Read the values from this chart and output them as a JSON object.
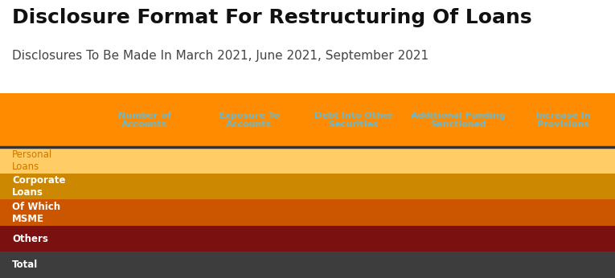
{
  "title": "Disclosure Format For Restructuring Of Loans",
  "subtitle": "Disclosures To Be Made In March 2021, June 2021, September 2021",
  "title_fontsize": 18,
  "subtitle_fontsize": 11,
  "header_bg_color": "#FF8C00",
  "header_text_color": "#6BB8CC",
  "header_columns": [
    "Number of\nAccounts",
    "Exposure To\nAccounts",
    "Debt Into Other\nSecurities",
    "Additional Funding\nSanctioned",
    "Increase In\nProvisions"
  ],
  "rows": [
    {
      "label": "Personal\nLoans",
      "bg_color": "#FFCC66",
      "text_color": "#CC7700",
      "bold": false
    },
    {
      "label": "Corporate\nLoans",
      "bg_color": "#CC8800",
      "text_color": "#FFFFFF",
      "bold": true
    },
    {
      "label": "Of Which\nMSME",
      "bg_color": "#CC5500",
      "text_color": "#FFFFFF",
      "bold": true
    },
    {
      "label": "Others",
      "bg_color": "#7A1010",
      "text_color": "#FFFFFF",
      "bold": true
    },
    {
      "label": "Total",
      "bg_color": "#3D3D3D",
      "text_color": "#FFFFFF",
      "bold": true
    }
  ],
  "title_color": "#111111",
  "subtitle_color": "#444444",
  "header_divider_color": "#333333",
  "fig_width": 7.65,
  "fig_height": 3.46,
  "dpi": 100,
  "background_color": "#FFFFFF"
}
